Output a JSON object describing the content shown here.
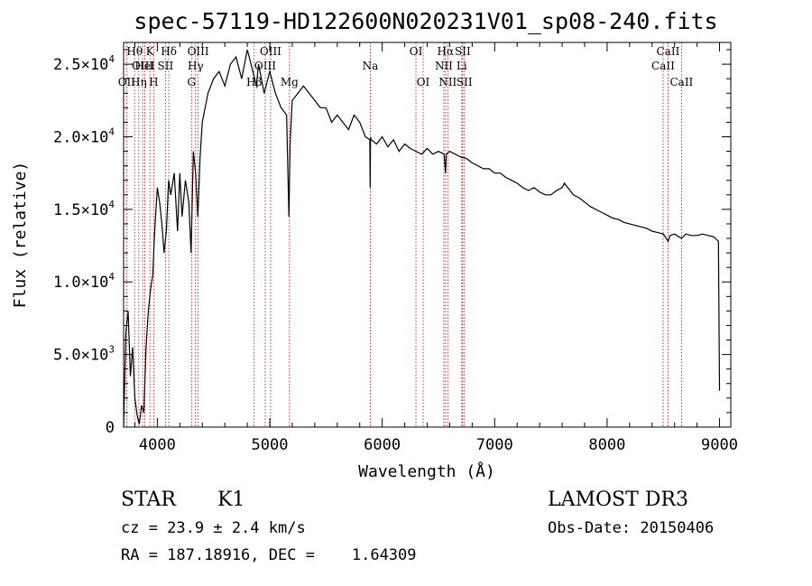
{
  "chart_data": {
    "type": "line",
    "title": "spec-57119-HD122600N020231V01_sp08-240.fits",
    "xlabel": "Wavelength (Å)",
    "ylabel": "Flux (relative)",
    "xlim": [
      3700,
      9100
    ],
    "ylim": [
      0,
      26500
    ],
    "xticks": [
      {
        "value": 4000,
        "label": "4000"
      },
      {
        "value": 5000,
        "label": "5000"
      },
      {
        "value": 6000,
        "label": "6000"
      },
      {
        "value": 7000,
        "label": "7000"
      },
      {
        "value": 8000,
        "label": "8000"
      },
      {
        "value": 9000,
        "label": "9000"
      }
    ],
    "yticks": [
      {
        "value": 0,
        "mant": "0",
        "exp": ""
      },
      {
        "value": 5000,
        "mant": "5.0×10",
        "exp": "3"
      },
      {
        "value": 10000,
        "mant": "1.0×10",
        "exp": "4"
      },
      {
        "value": 15000,
        "mant": "1.5×10",
        "exp": "4"
      },
      {
        "value": 20000,
        "mant": "2.0×10",
        "exp": "4"
      },
      {
        "value": 25000,
        "mant": "2.5×10",
        "exp": "4"
      }
    ],
    "series": [
      {
        "x": [
          3700,
          3720,
          3740,
          3760,
          3780,
          3800,
          3820,
          3840,
          3860,
          3880,
          3900,
          3920,
          3940,
          3960,
          3970,
          3980,
          4000,
          4020,
          4040,
          4060,
          4080,
          4100,
          4120,
          4150,
          4180,
          4200,
          4220,
          4250,
          4280,
          4300,
          4320,
          4340,
          4360,
          4380,
          4400,
          4450,
          4500,
          4550,
          4600,
          4650,
          4700,
          4750,
          4800,
          4850,
          4880,
          4900,
          4950,
          5000,
          5050,
          5100,
          5150,
          5170,
          5180,
          5200,
          5250,
          5300,
          5350,
          5400,
          5450,
          5500,
          5550,
          5600,
          5650,
          5700,
          5750,
          5800,
          5850,
          5890,
          5893,
          5896,
          5900,
          5950,
          6000,
          6050,
          6100,
          6150,
          6200,
          6250,
          6300,
          6350,
          6400,
          6450,
          6500,
          6550,
          6563,
          6570,
          6600,
          6650,
          6700,
          6750,
          6800,
          6850,
          6900,
          6950,
          7000,
          7050,
          7100,
          7150,
          7200,
          7250,
          7300,
          7350,
          7400,
          7450,
          7500,
          7550,
          7600,
          7620,
          7650,
          7700,
          7750,
          7800,
          7850,
          7900,
          7950,
          8000,
          8050,
          8100,
          8150,
          8200,
          8250,
          8300,
          8350,
          8400,
          8450,
          8500,
          8542,
          8560,
          8600,
          8662,
          8700,
          8750,
          8800,
          8850,
          8900,
          8950,
          8990,
          9000
        ],
        "y": [
          0,
          6500,
          8000,
          3500,
          5500,
          2000,
          800,
          200,
          1500,
          1000,
          5500,
          8000,
          9500,
          10500,
          12500,
          14000,
          16500,
          15500,
          14000,
          12000,
          13500,
          17000,
          16000,
          17500,
          13500,
          17500,
          14500,
          17000,
          15500,
          12000,
          19000,
          17500,
          14500,
          18500,
          21000,
          23000,
          24000,
          24500,
          23500,
          25000,
          25500,
          24000,
          26000,
          24500,
          23500,
          25000,
          23000,
          24500,
          23000,
          22000,
          21500,
          14500,
          19500,
          22500,
          23000,
          23500,
          23000,
          22500,
          22000,
          22000,
          21000,
          21500,
          21000,
          20500,
          21500,
          21000,
          20000,
          19800,
          16500,
          20000,
          19800,
          19500,
          20000,
          19300,
          19800,
          19000,
          19500,
          19200,
          19000,
          18800,
          19200,
          18800,
          19000,
          18800,
          17500,
          18800,
          19000,
          18800,
          18600,
          18500,
          18200,
          18000,
          17800,
          17800,
          17500,
          17500,
          17200,
          17000,
          16800,
          16500,
          16300,
          16500,
          16200,
          16000,
          16000,
          16300,
          16500,
          16800,
          16500,
          16000,
          15800,
          15500,
          15200,
          15000,
          14800,
          14600,
          14400,
          14300,
          14100,
          14000,
          13900,
          13800,
          13700,
          13500,
          13400,
          13300,
          12800,
          13200,
          13300,
          13000,
          13300,
          13200,
          13200,
          13300,
          13200,
          13100,
          12800,
          2500
        ]
      }
    ],
    "line_markers": [
      {
        "x": 3727,
        "label": "OII",
        "row": 2
      },
      {
        "x": 3798,
        "label": "Hθ",
        "row": 0
      },
      {
        "x": 3835,
        "label": "Hη",
        "row": 2
      },
      {
        "x": 3869,
        "label": "OIII",
        "row": 1
      },
      {
        "x": 3889,
        "label": "HeI",
        "row": 1
      },
      {
        "x": 3934,
        "label": "K",
        "row": 0
      },
      {
        "x": 3968,
        "label": "H",
        "row": 2
      },
      {
        "x": 4072,
        "label": "SII",
        "row": 1
      },
      {
        "x": 4102,
        "label": "Hδ",
        "row": 0
      },
      {
        "x": 4304,
        "label": "G",
        "row": 2
      },
      {
        "x": 4340,
        "label": "Hγ",
        "row": 1
      },
      {
        "x": 4363,
        "label": "OIII",
        "row": 0
      },
      {
        "x": 4861,
        "label": "Hβ",
        "row": 2
      },
      {
        "x": 4959,
        "label": "OIII",
        "row": 1
      },
      {
        "x": 5007,
        "label": "OIII",
        "row": 0
      },
      {
        "x": 5175,
        "label": "Mg",
        "row": 2
      },
      {
        "x": 5894,
        "label": "Na",
        "row": 1
      },
      {
        "x": 6300,
        "label": "OI",
        "row": 0
      },
      {
        "x": 6364,
        "label": "OI",
        "row": 2
      },
      {
        "x": 6548,
        "label": "NII",
        "row": 1
      },
      {
        "x": 6563,
        "label": "Hα",
        "row": 0
      },
      {
        "x": 6583,
        "label": "NII",
        "row": 2
      },
      {
        "x": 6707,
        "label": "Li",
        "row": 1
      },
      {
        "x": 6716,
        "label": "SII",
        "row": 0
      },
      {
        "x": 6731,
        "label": "SII",
        "row": 2
      },
      {
        "x": 8498,
        "label": "CaII",
        "row": 1
      },
      {
        "x": 8542,
        "label": "CaII",
        "row": 0
      },
      {
        "x": 8662,
        "label": "CaII",
        "row": 2
      }
    ],
    "colors": {
      "spectrum": "#000000",
      "markers": "#c00000"
    }
  },
  "info": {
    "class_label": "STAR",
    "subclass": "K1",
    "survey": "LAMOST DR3",
    "cz": "cz = 23.9 ± 2.4 km/s",
    "obs_date": "Obs-Date: 20150406",
    "radec": "RA = 187.18916, DEC =    1.64309"
  }
}
